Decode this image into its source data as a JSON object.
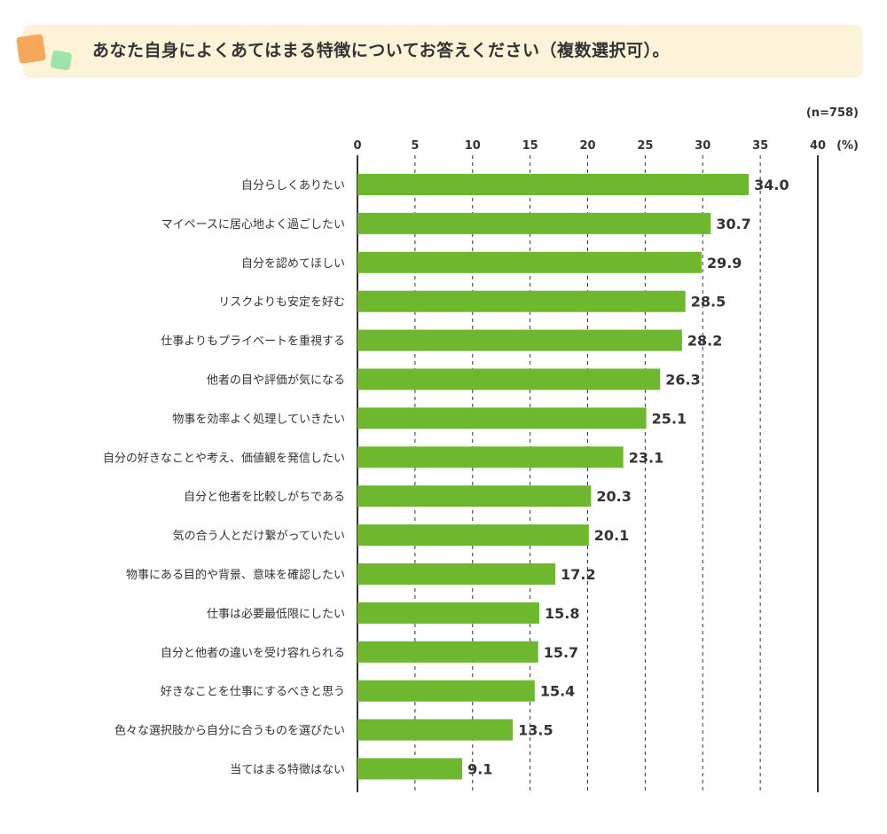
{
  "title": "あなた自身によくあてはまる特徴についてお答えください（複数選択可）。",
  "colors": {
    "bar": "#6db82f",
    "title_bg": "#fdf3d8",
    "deco_orange": "#f6a75a",
    "deco_green": "#9ee3a7"
  },
  "chart_data": {
    "type": "bar",
    "orientation": "horizontal",
    "sample_note": "(n=758)",
    "unit": "(%)",
    "xlim": [
      0,
      40
    ],
    "ticks": [
      0,
      5,
      10,
      15,
      20,
      25,
      30,
      35,
      40
    ],
    "grid": true,
    "categories": [
      "自分らしくありたい",
      "マイペースに居心地よく過ごしたい",
      "自分を認めてほしい",
      "リスクよりも安定を好む",
      "仕事よりもプライベートを重視する",
      "他者の目や評価が気になる",
      "物事を効率よく処理していきたい",
      "自分の好きなことや考え、価値観を発信したい",
      "自分と他者を比較しがちである",
      "気の合う人とだけ繋がっていたい",
      "物事にある目的や背景、意味を確認したい",
      "仕事は必要最低限にしたい",
      "自分と他者の違いを受け容れられる",
      "好きなことを仕事にするべきと思う",
      "色々な選択肢から自分に合うものを選びたい",
      "当てはまる特徴はない"
    ],
    "values": [
      34.0,
      30.7,
      29.9,
      28.5,
      28.2,
      26.3,
      25.1,
      23.1,
      20.3,
      20.1,
      17.2,
      15.8,
      15.7,
      15.4,
      13.5,
      9.1
    ]
  }
}
